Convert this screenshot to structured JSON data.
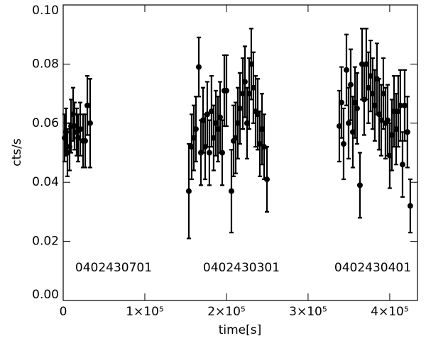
{
  "chart_data": {
    "type": "scatter",
    "xlabel": "time[s]",
    "ylabel": "cts/s",
    "xlim": [
      0,
      434000
    ],
    "ylim": [
      0,
      0.1
    ],
    "xticks": [
      0,
      {
        "value": 100000,
        "label": "1×10⁵"
      },
      {
        "value": 200000,
        "label": "2×10⁵"
      },
      {
        "value": 300000,
        "label": "3×10⁵"
      },
      {
        "value": 400000,
        "label": "4×10⁵"
      }
    ],
    "yticks": [
      {
        "value": 0,
        "label": "0.00"
      },
      {
        "value": 0.02,
        "label": "0.02"
      },
      {
        "value": 0.04,
        "label": "0.04"
      },
      {
        "value": 0.06,
        "label": "0.06"
      },
      {
        "value": 0.08,
        "label": "0.08"
      },
      {
        "value": 0.1,
        "label": "0.10"
      }
    ],
    "color": "#000000",
    "annotations": [
      "0402430701",
      "0402430301",
      "0402430401"
    ],
    "x": [
      1700,
      3500,
      5200,
      7800,
      9600,
      12200,
      13900,
      16500,
      18300,
      20900,
      24300,
      27000,
      29600,
      33000,
      153900,
      157400,
      160000,
      162600,
      166100,
      168700,
      171300,
      173900,
      176500,
      179100,
      181700,
      184300,
      187000,
      189600,
      192200,
      194800,
      197400,
      200000,
      206100,
      208700,
      211300,
      213900,
      216500,
      220000,
      222600,
      225200,
      227800,
      230400,
      233000,
      235700,
      238300,
      240900,
      243500,
      246100,
      249600,
      338300,
      340900,
      343500,
      347000,
      349600,
      352200,
      354800,
      357400,
      360000,
      363500,
      366100,
      368700,
      371300,
      373900,
      376500,
      379100,
      381700,
      384300,
      387000,
      389600,
      392200,
      394800,
      397400,
      400000,
      402600,
      405200,
      407800,
      410400,
      413000,
      415700,
      418300,
      421700,
      425200
    ],
    "values": [
      0.055,
      0.057,
      0.05,
      0.052,
      0.059,
      0.063,
      0.059,
      0.057,
      0.055,
      0.058,
      0.054,
      0.054,
      0.066,
      0.06,
      0.037,
      0.052,
      0.055,
      0.058,
      0.079,
      0.05,
      0.061,
      0.052,
      0.063,
      0.05,
      0.064,
      0.055,
      0.06,
      0.058,
      0.062,
      0.05,
      0.071,
      0.071,
      0.037,
      0.054,
      0.055,
      0.06,
      0.065,
      0.07,
      0.074,
      0.06,
      0.07,
      0.08,
      0.072,
      0.064,
      0.063,
      0.053,
      0.058,
      0.052,
      0.041,
      0.059,
      0.067,
      0.053,
      0.078,
      0.06,
      0.073,
      0.057,
      0.067,
      0.065,
      0.039,
      0.08,
      0.068,
      0.08,
      0.072,
      0.076,
      0.07,
      0.066,
      0.075,
      0.063,
      0.061,
      0.07,
      0.06,
      0.061,
      0.049,
      0.056,
      0.064,
      0.058,
      0.064,
      0.066,
      0.046,
      0.066,
      0.057,
      0.032
    ],
    "errors": [
      0.008,
      0.008,
      0.008,
      0.008,
      0.009,
      0.009,
      0.008,
      0.008,
      0.008,
      0.009,
      0.009,
      0.009,
      0.01,
      0.015,
      0.016,
      0.011,
      0.011,
      0.011,
      0.01,
      0.011,
      0.011,
      0.011,
      0.011,
      0.011,
      0.012,
      0.011,
      0.011,
      0.011,
      0.012,
      0.011,
      0.012,
      0.012,
      0.014,
      0.012,
      0.012,
      0.012,
      0.012,
      0.012,
      0.012,
      0.012,
      0.012,
      0.012,
      0.012,
      0.012,
      0.012,
      0.011,
      0.012,
      0.011,
      0.011,
      0.012,
      0.012,
      0.012,
      0.012,
      0.012,
      0.012,
      0.012,
      0.012,
      0.012,
      0.011,
      0.012,
      0.012,
      0.012,
      0.012,
      0.012,
      0.012,
      0.012,
      0.012,
      0.012,
      0.012,
      0.012,
      0.012,
      0.012,
      0.011,
      0.012,
      0.012,
      0.012,
      0.012,
      0.012,
      0.011,
      0.012,
      0.012,
      0.009
    ]
  }
}
